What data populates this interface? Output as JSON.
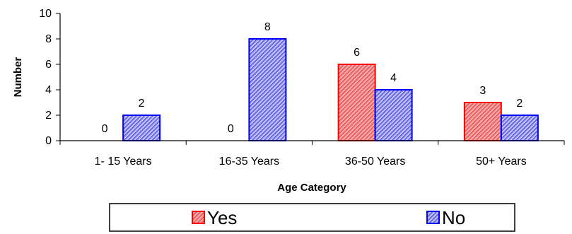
{
  "chart_data": {
    "type": "bar",
    "categories": [
      "1- 15 Years",
      "16-35 Years",
      "36-50 Years",
      "50+ Years"
    ],
    "series": [
      {
        "name": "Yes",
        "values": [
          0,
          0,
          6,
          3
        ],
        "color": "#ff0000",
        "fill": "#f07070"
      },
      {
        "name": "No",
        "values": [
          2,
          8,
          4,
          2
        ],
        "color": "#0000ff",
        "fill": "#8a8aee"
      }
    ],
    "title": "",
    "xlabel": "Age Category",
    "ylabel": "Number",
    "ylim": [
      0,
      10
    ],
    "yticks": [
      0,
      2,
      4,
      6,
      8,
      10
    ],
    "grid": false,
    "legend": "bottom"
  }
}
